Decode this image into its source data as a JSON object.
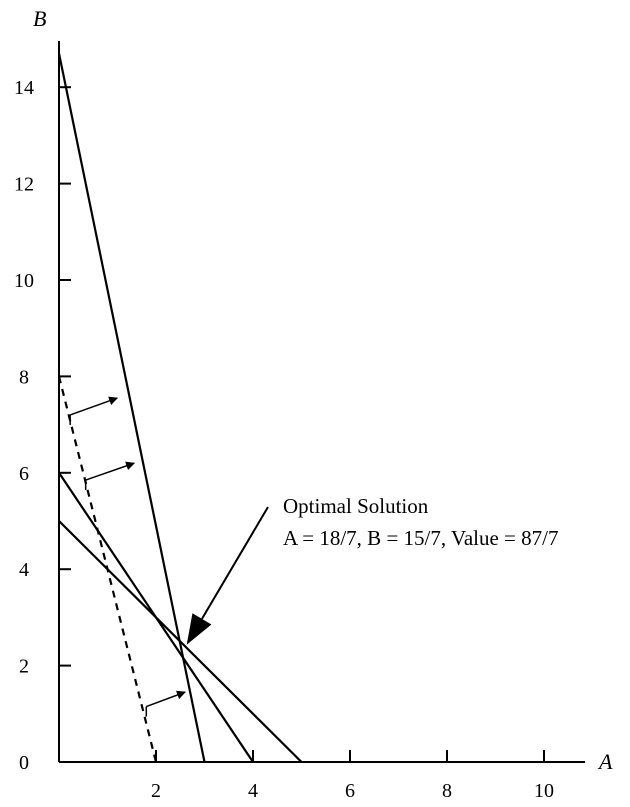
{
  "chart_data": {
    "type": "line",
    "title": "",
    "xlabel": "A",
    "ylabel": "B",
    "xlim": [
      0,
      11
    ],
    "ylim": [
      0,
      15
    ],
    "x_ticks": [
      0,
      2,
      4,
      6,
      8,
      10
    ],
    "y_ticks": [
      0,
      2,
      4,
      6,
      8,
      10,
      12,
      14
    ],
    "grid": false,
    "series": [
      {
        "style": "solid",
        "points": [
          [
            0,
            14.7
          ],
          [
            3,
            0
          ]
        ]
      },
      {
        "style": "solid",
        "points": [
          [
            0,
            6
          ],
          [
            4,
            0
          ]
        ]
      },
      {
        "style": "solid",
        "points": [
          [
            0,
            5
          ],
          [
            5,
            0
          ]
        ]
      },
      {
        "style": "dashed",
        "points": [
          [
            0,
            8
          ],
          [
            2,
            0
          ]
        ]
      }
    ],
    "objective_arrows": [
      {
        "x1": 0.23,
        "y1": 7.2,
        "x2": 1.2,
        "y2": 7.55
      },
      {
        "x1": 0.55,
        "y1": 5.85,
        "x2": 1.55,
        "y2": 6.2
      },
      {
        "x1": 1.8,
        "y1": 1.15,
        "x2": 2.6,
        "y2": 1.45
      }
    ],
    "annotation": {
      "line1": "Optimal Solution",
      "line2": "A = 18/7, B = 15/7, Value = 87/7",
      "point": [
        2.571,
        2.143
      ]
    }
  }
}
